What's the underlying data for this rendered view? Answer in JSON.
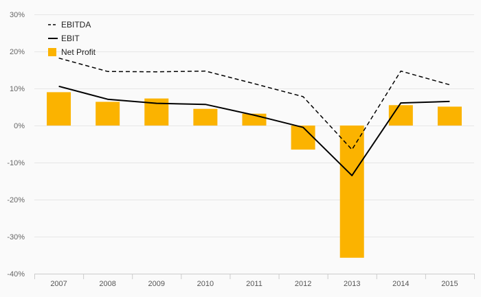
{
  "chart_data": {
    "type": "bar",
    "title": "",
    "xlabel": "",
    "ylabel": "",
    "categories": [
      "2007",
      "2008",
      "2009",
      "2010",
      "2011",
      "2012",
      "2013",
      "2014",
      "2015"
    ],
    "ylim": [
      -40,
      30
    ],
    "yticks": [
      30,
      20,
      10,
      0,
      -10,
      -20,
      -30,
      -40
    ],
    "ytick_labels": [
      "30%",
      "20%",
      "10%",
      "0%",
      "-10%",
      "-20%",
      "-30%",
      "-40%"
    ],
    "grid": true,
    "legend_position": "top-left",
    "series": [
      {
        "name": "EBITDA",
        "kind": "line",
        "style": "dashed",
        "color": "#000000",
        "values": [
          18.2,
          14.6,
          14.5,
          14.7,
          11.3,
          7.8,
          -6.5,
          14.7,
          11.0
        ]
      },
      {
        "name": "EBIT",
        "kind": "line",
        "style": "solid",
        "color": "#000000",
        "values": [
          10.6,
          7.1,
          6.0,
          5.7,
          2.8,
          -0.5,
          -13.5,
          6.1,
          6.5
        ]
      },
      {
        "name": "Net Profit",
        "kind": "bar",
        "color": "#fbb300",
        "values": [
          9.0,
          6.4,
          7.3,
          4.5,
          3.2,
          -6.5,
          -35.7,
          5.5,
          5.1
        ]
      }
    ]
  }
}
